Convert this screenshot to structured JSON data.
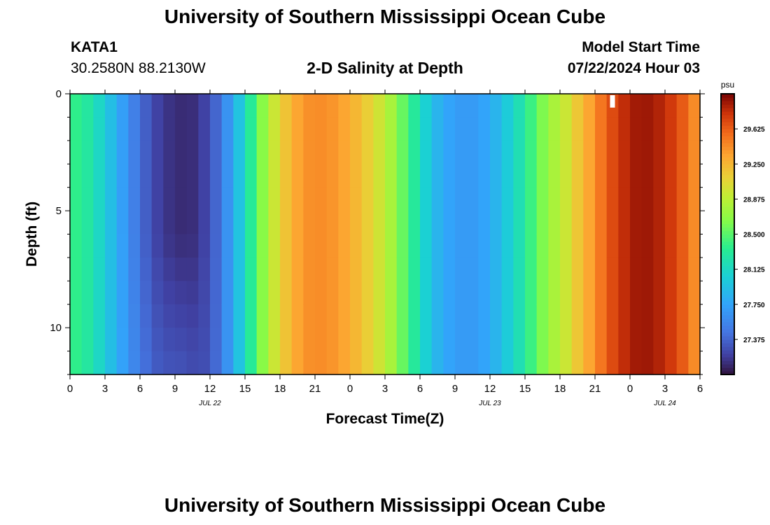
{
  "header": {
    "title": "University of Southern Mississippi Ocean Cube",
    "station": "KATA1",
    "coordinates": "30.2580N  88.2130W",
    "subtitle": "2-D Salinity at Depth",
    "model_label": "Model Start Time",
    "model_time": "07/22/2024 Hour 03"
  },
  "footer": {
    "title": "University of Southern Mississippi Ocean Cube"
  },
  "chart_data": {
    "type": "heatmap",
    "title": "2-D Salinity at Depth",
    "xlabel": "Forecast Time(Z)",
    "ylabel": "Depth (ft)",
    "x_ticks": [
      "0",
      "3",
      "6",
      "9",
      "12",
      "15",
      "18",
      "21",
      "0",
      "3",
      "6",
      "9",
      "12",
      "15",
      "18",
      "21",
      "0",
      "3",
      "6"
    ],
    "day_labels": [
      {
        "label": "JUL 22",
        "hour": 12
      },
      {
        "label": "JUL 23",
        "hour": 36
      },
      {
        "label": "JUL 24",
        "hour": 51
      }
    ],
    "x_range_hours": [
      0,
      54
    ],
    "y_ticks": [
      "0",
      "5",
      "10"
    ],
    "y_range_ft": [
      0,
      12
    ],
    "colorbar": {
      "unit": "psu",
      "range": [
        27.0,
        30.0
      ],
      "tick_labels": [
        "29.625",
        "29.250",
        "28.875",
        "28.500",
        "28.125",
        "27.750",
        "27.375"
      ],
      "tick_values": [
        29.625,
        29.25,
        28.875,
        28.5,
        28.125,
        27.75,
        27.375
      ]
    },
    "hourly_salinity_psu": [
      28.37,
      28.28,
      28.12,
      27.93,
      27.72,
      27.52,
      27.35,
      27.22,
      27.15,
      27.12,
      27.13,
      27.22,
      27.38,
      27.64,
      27.96,
      28.32,
      28.66,
      28.95,
      29.18,
      29.34,
      29.43,
      29.44,
      29.41,
      29.34,
      29.25,
      29.12,
      28.97,
      28.79,
      28.55,
      28.3,
      28.06,
      27.86,
      27.75,
      27.69,
      27.69,
      27.75,
      27.86,
      28.02,
      28.2,
      28.41,
      28.62,
      28.8,
      28.95,
      29.16,
      29.34,
      29.53,
      29.7,
      29.82,
      29.9,
      29.91,
      29.86,
      29.77,
      29.64,
      29.45,
      29.2
    ],
    "deep_adjustment_psu": [
      0.0,
      0.0,
      0.0,
      0.0,
      0.02,
      0.05,
      0.08,
      0.12,
      0.16,
      0.18,
      0.14,
      0.06,
      0.02,
      0.0,
      0.0,
      0.0,
      0.0,
      0.0,
      0.0,
      0.0,
      0.0,
      0.0,
      0.0,
      0.0,
      0.0,
      0.0,
      0.0,
      0.0,
      0.0,
      0.0,
      0.0,
      0.0,
      0.0,
      0.0,
      0.0,
      0.0,
      0.0,
      0.0,
      0.0,
      0.0,
      0.0,
      0.0,
      0.0,
      0.0,
      0.0,
      0.0,
      0.0,
      0.0,
      0.0,
      0.0,
      0.0,
      0.0,
      0.0,
      0.0,
      0.0
    ],
    "marker": {
      "hour": 46.5,
      "depth_ft_range": [
        0,
        0.5
      ]
    },
    "grid": false
  }
}
